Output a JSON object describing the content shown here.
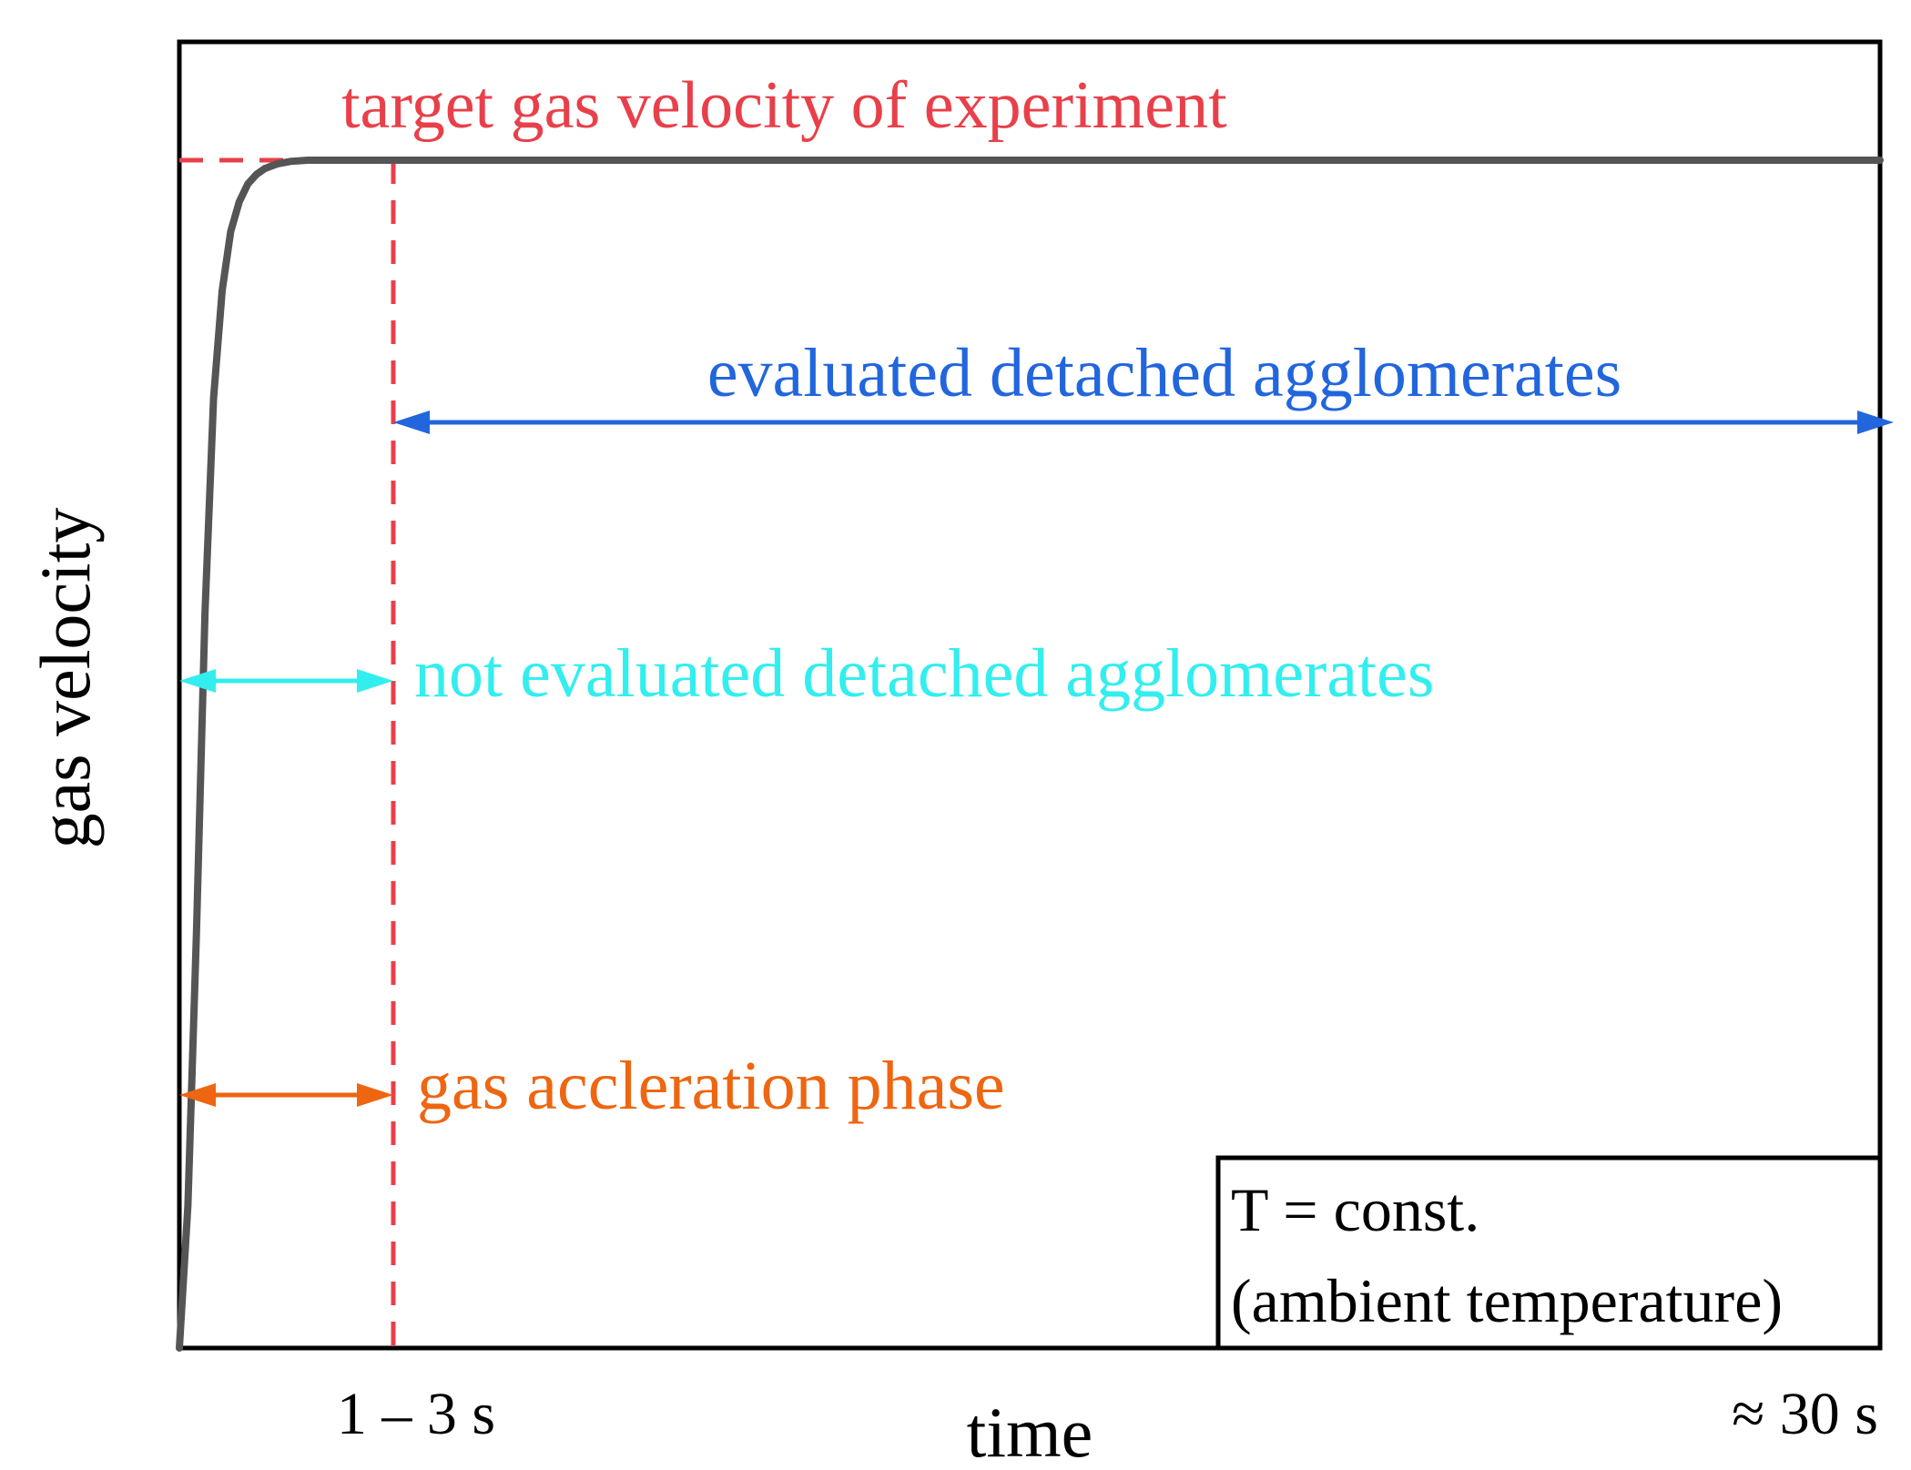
{
  "chart_data": {
    "type": "line",
    "xlabel": "time",
    "ylabel": "gas velocity",
    "x_ticks": [
      "1 – 3 s",
      "≈ 30 s"
    ],
    "target_label": "target gas velocity of experiment",
    "series": [
      {
        "name": "gas velocity",
        "color": "#555555",
        "x": [
          0,
          0.2,
          0.4,
          0.6,
          0.8,
          1.0,
          1.2,
          1.4,
          1.6,
          1.8,
          2.0,
          2.3,
          2.6,
          3.0,
          4.0,
          6.0,
          10.0,
          15.0,
          20.0,
          25.0,
          30.0
        ],
        "y": [
          0.0,
          0.12,
          0.35,
          0.62,
          0.8,
          0.89,
          0.94,
          0.965,
          0.98,
          0.988,
          0.993,
          0.997,
          0.999,
          1.0,
          1.0,
          1.0,
          1.0,
          1.0,
          1.0,
          1.0,
          1.0
        ]
      }
    ],
    "xlim": [
      0,
      30
    ],
    "ylim": [
      0,
      1.1
    ],
    "target_y": 1.0,
    "phase_boundary_x": 3.8,
    "annotations": [
      {
        "id": "evaluated",
        "text": "evaluated detached agglomerates",
        "color": "#2266dd",
        "from_x": 3.8,
        "to_x": 30,
        "y": 0.78
      },
      {
        "id": "not_evaluated",
        "text": "not evaluated  detached agglomerates",
        "color": "#33eeee",
        "from_x": 0,
        "to_x": 3.8,
        "y": 0.55
      },
      {
        "id": "acceleration",
        "text": "gas accleration phase",
        "color": "#ee6611",
        "from_x": 0,
        "to_x": 3.8,
        "y": 0.2
      }
    ],
    "note_lines": [
      "T = const.",
      "(ambient temperature)"
    ],
    "colors": {
      "target": "#e8404a",
      "curve": "#555555",
      "frame": "#000000"
    }
  }
}
